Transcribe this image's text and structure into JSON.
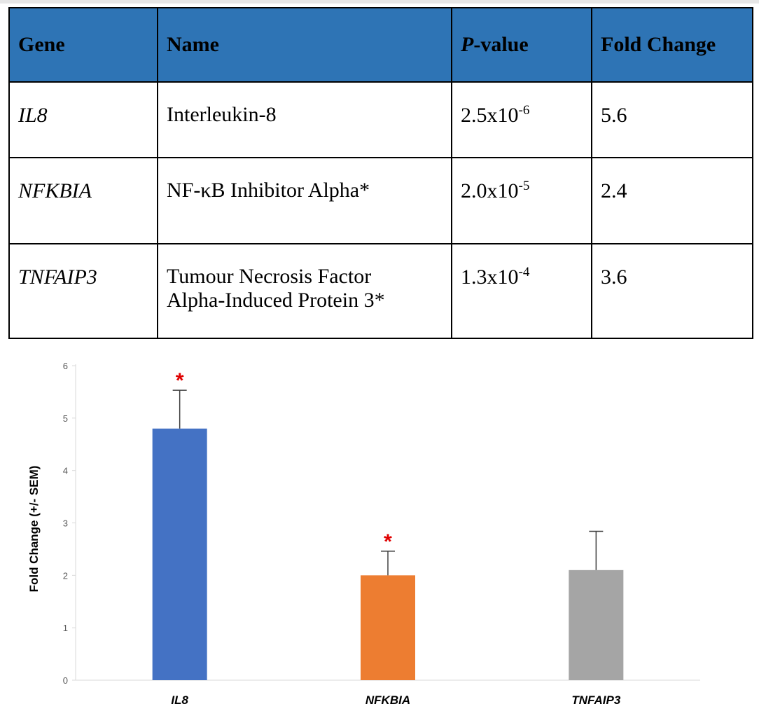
{
  "table": {
    "headers": {
      "gene": "Gene",
      "name": "Name",
      "p_italic": "P",
      "p_rest": "-value",
      "fold": "Fold Change"
    },
    "rows": [
      {
        "gene": "IL8",
        "name": [
          "Interleukin-8"
        ],
        "p_base": "2.5x10",
        "p_exp": "-6",
        "fold": "5.6"
      },
      {
        "gene": "NFKBIA",
        "name": [
          "NF-κB Inhibitor Alpha*"
        ],
        "p_base": "2.0x10",
        "p_exp": "-5",
        "fold": "2.4"
      },
      {
        "gene": "TNFAIP3",
        "name": [
          "Tumour Necrosis Factor",
          "Alpha-Induced Protein 3*"
        ],
        "p_base": "1.3x10",
        "p_exp": "-4",
        "fold": "3.6"
      }
    ]
  },
  "chart_data": {
    "type": "bar",
    "title": "",
    "xlabel": "",
    "ylabel": "Fold Change (+/- SEM)",
    "categories": [
      "IL8",
      "NFKBIA",
      "TNFAIP3"
    ],
    "values": [
      4.8,
      2.0,
      2.1
    ],
    "error_upper": [
      0.73,
      0.46,
      0.74
    ],
    "significant": [
      true,
      true,
      false
    ],
    "significance_marker": "*",
    "colors": [
      "#4472c4",
      "#ed7d31",
      "#a5a5a5"
    ],
    "ylim": [
      0,
      6
    ],
    "yticks": [
      0,
      1,
      2,
      3,
      4,
      5,
      6
    ],
    "grid": false,
    "legend": "none"
  }
}
